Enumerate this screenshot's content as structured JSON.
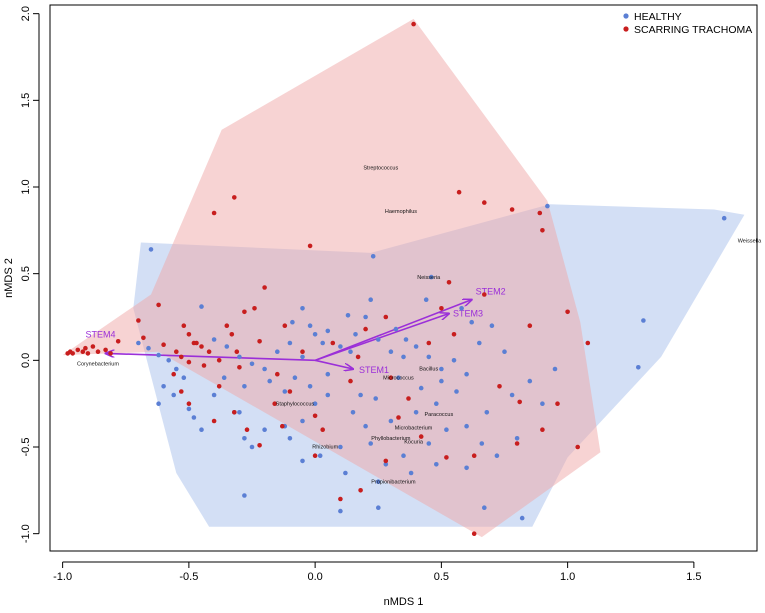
{
  "chart_data": {
    "type": "scatter",
    "title": "",
    "xlabel": "nMDS 1",
    "ylabel": "nMDS 2",
    "xlim": [
      -1.05,
      1.75
    ],
    "ylim": [
      -1.1,
      2.05
    ],
    "xticks": [
      "-1.0",
      "-0.5",
      "0.0",
      "0.5",
      "1.0",
      "1.5"
    ],
    "yticks": [
      "-1.0",
      "-0.5",
      "0.0",
      "0.5",
      "1.0",
      "1.5",
      "2.0"
    ],
    "xtick_values": [
      -1.0,
      -0.5,
      0.0,
      0.5,
      1.0,
      1.5
    ],
    "ytick_values": [
      -1.0,
      -0.5,
      0.0,
      0.5,
      1.0,
      1.5,
      2.0
    ],
    "grid": false,
    "legend_position": "top-right",
    "colors": {
      "healthy_point": "#5b7fd4",
      "trachoma_point": "#c81e1e",
      "healthy_hull": "#a8c0ec",
      "trachoma_hull": "#f0a8a8",
      "vectors": "#9b2fd8"
    },
    "series": [
      {
        "name": "HEALTHY",
        "color": "#5b7fd4",
        "hull": [
          [
            -0.69,
            0.68
          ],
          [
            0.22,
            0.62
          ],
          [
            0.93,
            0.9
          ],
          [
            1.58,
            0.87
          ],
          [
            1.7,
            0.84
          ],
          [
            1.37,
            0.02
          ],
          [
            1.0,
            -0.56
          ],
          [
            0.86,
            -0.96
          ],
          [
            -0.42,
            -0.96
          ],
          [
            -0.55,
            -0.65
          ],
          [
            -0.72,
            0.3
          ]
        ],
        "points": [
          [
            -0.65,
            0.64
          ],
          [
            0.23,
            0.6
          ],
          [
            0.46,
            0.48
          ],
          [
            0.92,
            0.89
          ],
          [
            1.62,
            0.82
          ],
          [
            1.3,
            0.23
          ],
          [
            1.28,
            -0.04
          ],
          [
            0.82,
            -0.91
          ],
          [
            -0.28,
            -0.78
          ],
          [
            0.1,
            -0.87
          ],
          [
            0.67,
            -0.85
          ],
          [
            0.25,
            -0.85
          ],
          [
            -0.7,
            0.1
          ],
          [
            -0.66,
            0.07
          ],
          [
            -0.62,
            0.03
          ],
          [
            -0.58,
            0.0
          ],
          [
            -0.55,
            -0.05
          ],
          [
            -0.52,
            -0.1
          ],
          [
            -0.6,
            -0.15
          ],
          [
            -0.56,
            -0.2
          ],
          [
            -0.62,
            -0.25
          ],
          [
            -0.5,
            -0.28
          ],
          [
            -0.48,
            -0.33
          ],
          [
            -0.45,
            -0.4
          ],
          [
            -0.45,
            0.31
          ],
          [
            -0.4,
            0.12
          ],
          [
            -0.35,
            0.08
          ],
          [
            -0.3,
            0.02
          ],
          [
            -0.36,
            -0.1
          ],
          [
            -0.28,
            -0.15
          ],
          [
            -0.25,
            -0.02
          ],
          [
            -0.2,
            -0.05
          ],
          [
            -0.15,
            0.05
          ],
          [
            -0.18,
            -0.12
          ],
          [
            -0.12,
            -0.18
          ],
          [
            -0.08,
            -0.1
          ],
          [
            -0.05,
            0.02
          ],
          [
            -0.1,
            0.1
          ],
          [
            -0.09,
            0.22
          ],
          [
            -0.02,
            0.2
          ],
          [
            0.05,
            0.17
          ],
          [
            0.03,
            0.1
          ],
          [
            0.1,
            0.08
          ],
          [
            0.16,
            0.15
          ],
          [
            0.2,
            0.25
          ],
          [
            0.13,
            0.26
          ],
          [
            0.25,
            0.12
          ],
          [
            0.3,
            0.05
          ],
          [
            0.35,
            0.02
          ],
          [
            0.4,
            0.08
          ],
          [
            0.45,
            0.02
          ],
          [
            0.5,
            -0.05
          ],
          [
            0.55,
            0.0
          ],
          [
            0.6,
            -0.08
          ],
          [
            0.65,
            0.1
          ],
          [
            0.7,
            0.2
          ],
          [
            0.56,
            -0.18
          ],
          [
            0.48,
            -0.25
          ],
          [
            0.4,
            -0.3
          ],
          [
            0.3,
            -0.35
          ],
          [
            0.2,
            -0.38
          ],
          [
            0.15,
            -0.3
          ],
          [
            0.05,
            -0.2
          ],
          [
            0.0,
            -0.25
          ],
          [
            -0.05,
            -0.35
          ],
          [
            -0.12,
            -0.38
          ],
          [
            -0.2,
            -0.4
          ],
          [
            -0.28,
            -0.45
          ],
          [
            -0.25,
            -0.5
          ],
          [
            -0.1,
            -0.45
          ],
          [
            0.02,
            -0.55
          ],
          [
            -0.05,
            -0.58
          ],
          [
            0.1,
            -0.5
          ],
          [
            0.22,
            -0.48
          ],
          [
            0.28,
            -0.6
          ],
          [
            0.35,
            -0.55
          ],
          [
            0.45,
            -0.48
          ],
          [
            0.52,
            -0.4
          ],
          [
            0.6,
            -0.38
          ],
          [
            0.68,
            -0.3
          ],
          [
            0.78,
            -0.2
          ],
          [
            0.85,
            -0.12
          ],
          [
            0.9,
            -0.25
          ],
          [
            0.95,
            -0.05
          ],
          [
            0.75,
            0.05
          ],
          [
            0.62,
            0.22
          ],
          [
            0.58,
            0.3
          ],
          [
            0.36,
            0.12
          ],
          [
            0.32,
            0.18
          ],
          [
            0.44,
            0.35
          ],
          [
            0.22,
            0.35
          ],
          [
            0.14,
            0.05
          ],
          [
            0.05,
            -0.08
          ],
          [
            -0.02,
            -0.15
          ],
          [
            0.18,
            -0.2
          ],
          [
            0.24,
            -0.22
          ],
          [
            0.33,
            -0.1
          ],
          [
            0.42,
            -0.16
          ],
          [
            0.5,
            -0.12
          ],
          [
            0.6,
            -0.62
          ],
          [
            0.72,
            -0.55
          ],
          [
            0.8,
            -0.45
          ],
          [
            -0.32,
            -0.3
          ],
          [
            -0.4,
            -0.2
          ],
          [
            -0.3,
            -0.3
          ],
          [
            0.12,
            -0.65
          ],
          [
            0.25,
            -0.7
          ],
          [
            0.38,
            -0.65
          ],
          [
            0.48,
            -0.6
          ],
          [
            0.66,
            -0.48
          ],
          [
            -0.05,
            0.3
          ],
          [
            0.0,
            0.15
          ]
        ]
      },
      {
        "name": "SCARRING TRACHOMA",
        "color": "#c81e1e",
        "hull": [
          [
            -1.0,
            0.03
          ],
          [
            -0.65,
            0.38
          ],
          [
            -0.37,
            1.33
          ],
          [
            0.39,
            1.97
          ],
          [
            0.92,
            0.92
          ],
          [
            1.05,
            0.22
          ],
          [
            1.13,
            -0.53
          ],
          [
            0.66,
            -1.02
          ],
          [
            -0.62,
            0.05
          ]
        ],
        "points": [
          [
            0.39,
            1.94
          ],
          [
            -0.32,
            0.94
          ],
          [
            -0.4,
            0.85
          ],
          [
            0.57,
            0.97
          ],
          [
            0.67,
            0.91
          ],
          [
            0.78,
            0.87
          ],
          [
            0.89,
            0.85
          ],
          [
            -0.02,
            0.66
          ],
          [
            0.53,
            0.45
          ],
          [
            0.67,
            0.38
          ],
          [
            0.9,
            0.75
          ],
          [
            1.0,
            0.28
          ],
          [
            1.08,
            0.1
          ],
          [
            -0.98,
            0.04
          ],
          [
            -0.97,
            0.05
          ],
          [
            -0.96,
            0.04
          ],
          [
            -0.94,
            0.06
          ],
          [
            -0.92,
            0.05
          ],
          [
            -0.91,
            0.07
          ],
          [
            -0.9,
            0.04
          ],
          [
            -0.88,
            0.08
          ],
          [
            -0.86,
            0.05
          ],
          [
            -0.83,
            0.06
          ],
          [
            -0.81,
            0.04
          ],
          [
            -0.78,
            0.11
          ],
          [
            -0.7,
            0.23
          ],
          [
            -0.68,
            0.13
          ],
          [
            -0.6,
            0.09
          ],
          [
            -0.55,
            0.05
          ],
          [
            -0.53,
            0.02
          ],
          [
            -0.5,
            -0.01
          ],
          [
            -0.45,
            0.08
          ],
          [
            -0.42,
            0.05
          ],
          [
            -0.38,
            0.0
          ],
          [
            -0.35,
            0.2
          ],
          [
            -0.33,
            0.15
          ],
          [
            -0.28,
            0.28
          ],
          [
            -0.31,
            0.05
          ],
          [
            -0.3,
            -0.04
          ],
          [
            -0.24,
            0.3
          ],
          [
            -0.22,
            0.11
          ],
          [
            -0.2,
            0.42
          ],
          [
            -0.52,
            0.2
          ],
          [
            -0.5,
            0.15
          ],
          [
            -0.47,
            0.1
          ],
          [
            -0.56,
            -0.08
          ],
          [
            -0.53,
            -0.18
          ],
          [
            -0.5,
            -0.25
          ],
          [
            -0.44,
            -0.03
          ],
          [
            -0.38,
            -0.15
          ],
          [
            -0.32,
            -0.3
          ],
          [
            -0.27,
            -0.4
          ],
          [
            -0.13,
            -0.38
          ],
          [
            -0.22,
            -0.49
          ],
          [
            -0.16,
            -0.25
          ],
          [
            0.0,
            -0.55
          ],
          [
            0.1,
            -0.8
          ],
          [
            0.33,
            -0.33
          ],
          [
            0.42,
            -0.44
          ],
          [
            0.52,
            -0.56
          ],
          [
            0.63,
            -0.55
          ],
          [
            0.8,
            -0.48
          ],
          [
            0.9,
            -0.4
          ],
          [
            0.96,
            -0.25
          ],
          [
            1.04,
            -0.5
          ],
          [
            0.81,
            -0.24
          ],
          [
            0.63,
            -1.0
          ],
          [
            0.18,
            -0.75
          ],
          [
            0.0,
            -0.32
          ],
          [
            -0.1,
            -0.18
          ],
          [
            -0.15,
            -0.08
          ],
          [
            -0.05,
            0.05
          ],
          [
            0.07,
            0.1
          ],
          [
            0.2,
            0.18
          ],
          [
            0.28,
            0.25
          ],
          [
            0.17,
            0.02
          ],
          [
            0.14,
            -0.12
          ],
          [
            0.3,
            -0.1
          ],
          [
            0.37,
            -0.22
          ],
          [
            0.45,
            0.1
          ],
          [
            0.55,
            0.15
          ],
          [
            -0.4,
            -0.35
          ],
          [
            -0.48,
            0.1
          ],
          [
            -0.62,
            0.32
          ],
          [
            0.5,
            0.3
          ],
          [
            0.85,
            0.2
          ],
          [
            0.73,
            -0.15
          ],
          [
            0.28,
            -0.58
          ],
          [
            0.03,
            -0.4
          ],
          [
            -0.12,
            0.2
          ]
        ]
      }
    ],
    "vectors": [
      {
        "label": "STEM1",
        "x": 0.15,
        "y": -0.05
      },
      {
        "label": "STEM2",
        "x": 0.62,
        "y": 0.35
      },
      {
        "label": "STEM3",
        "x": 0.53,
        "y": 0.27
      },
      {
        "label": "STEM4",
        "x": -0.83,
        "y": 0.04
      }
    ],
    "taxa_labels": [
      {
        "label": "Streptococcus",
        "x": 0.26,
        "y": 1.1
      },
      {
        "label": "Haemophilus",
        "x": 0.34,
        "y": 0.85
      },
      {
        "label": "Neisseria",
        "x": 0.45,
        "y": 0.47
      },
      {
        "label": "Weissella",
        "x": 1.72,
        "y": 0.68
      },
      {
        "label": "Corynebacterium",
        "x": -0.86,
        "y": -0.03
      },
      {
        "label": "Bacillus",
        "x": 0.45,
        "y": -0.06
      },
      {
        "label": "Micrococcus",
        "x": 0.33,
        "y": -0.11
      },
      {
        "label": "Staphylococcus",
        "x": -0.08,
        "y": -0.26
      },
      {
        "label": "Paracoccus",
        "x": 0.49,
        "y": -0.32
      },
      {
        "label": "Microbacterium",
        "x": 0.39,
        "y": -0.4
      },
      {
        "label": "Phyllobacterium",
        "x": 0.3,
        "y": -0.46
      },
      {
        "label": "Kocuria",
        "x": 0.39,
        "y": -0.48
      },
      {
        "label": "Rhizobium",
        "x": 0.04,
        "y": -0.51
      },
      {
        "label": "Propionibacterium",
        "x": 0.31,
        "y": -0.71
      }
    ]
  }
}
